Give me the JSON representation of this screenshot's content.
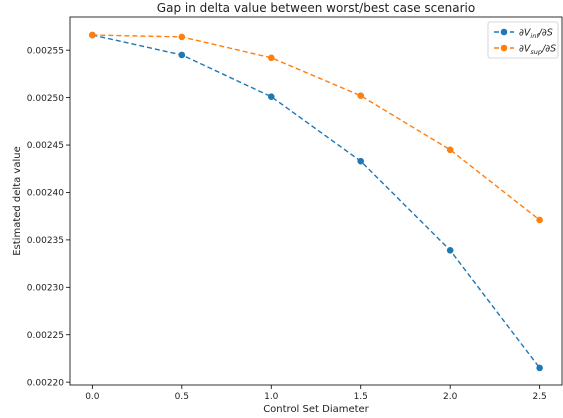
{
  "chart_data": {
    "type": "line",
    "title": "Gap in delta value between worst/best case scenario",
    "xlabel": "Control Set Diameter",
    "ylabel": "Estimated delta value",
    "x": [
      0.0,
      0.5,
      1.0,
      1.5,
      2.0,
      2.5
    ],
    "xlim": [
      -0.125,
      2.625
    ],
    "ylim": [
      0.002197,
      0.002585
    ],
    "xticks": [
      "0.0",
      "0.5",
      "1.0",
      "1.5",
      "2.0",
      "2.5"
    ],
    "yticks": [
      "0.00220",
      "0.00225",
      "0.00230",
      "0.00235",
      "0.00240",
      "0.00245",
      "0.00250",
      "0.00255"
    ],
    "ytick_values": [
      0.0022,
      0.00225,
      0.0023,
      0.00235,
      0.0024,
      0.00245,
      0.0025,
      0.00255
    ],
    "grid": false,
    "legend": "top-right",
    "series": [
      {
        "name": "∂V_inf/∂S",
        "label_base": "∂V",
        "label_sub": "inf",
        "label_tail": "/∂S",
        "color": "#1f77b4",
        "values": [
          0.002566,
          0.002545,
          0.002501,
          0.002433,
          0.002339,
          0.002215
        ]
      },
      {
        "name": "∂V_sup/∂S",
        "label_base": "∂V",
        "label_sub": "sup",
        "label_tail": "/∂S",
        "color": "#ff7f0e",
        "values": [
          0.002566,
          0.002564,
          0.002542,
          0.002502,
          0.002445,
          0.002371
        ]
      }
    ]
  }
}
